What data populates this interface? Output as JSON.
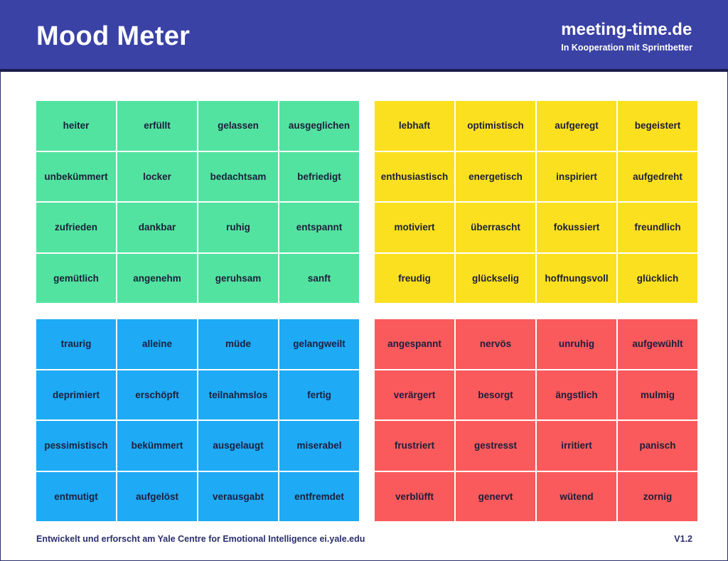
{
  "header": {
    "title": "Mood Meter",
    "brand": "meeting-time.de",
    "brand_sub": "In Kooperation mit Sprintbetter"
  },
  "colors": {
    "header": "#3a42a5",
    "green": "#52e3a0",
    "yellow": "#fbe01f",
    "blue": "#1eaaf5",
    "red": "#fa5a5c",
    "text": "#1c1f3a"
  },
  "quadrants": [
    {
      "id": "green",
      "words": [
        "heiter",
        "erfüllt",
        "gelassen",
        "ausgeglichen",
        "unbekümmert",
        "locker",
        "bedachtsam",
        "befriedigt",
        "zufrieden",
        "dankbar",
        "ruhig",
        "entspannt",
        "gemütlich",
        "angenehm",
        "geruhsam",
        "sanft"
      ]
    },
    {
      "id": "yellow",
      "words": [
        "lebhaft",
        "optimistisch",
        "aufgeregt",
        "begeistert",
        "enthusiastisch",
        "energetisch",
        "inspiriert",
        "aufgedreht",
        "motiviert",
        "überrascht",
        "fokussiert",
        "freundlich",
        "freudig",
        "glückselig",
        "hoffnungsvoll",
        "glücklich"
      ]
    },
    {
      "id": "blue",
      "words": [
        "traurig",
        "alleine",
        "müde",
        "gelangweilt",
        "deprimiert",
        "erschöpft",
        "teilnahmslos",
        "fertig",
        "pessimistisch",
        "bekümmert",
        "ausgelaugt",
        "miserabel",
        "entmutigt",
        "aufgelöst",
        "verausgabt",
        "entfremdet"
      ]
    },
    {
      "id": "red",
      "words": [
        "angespannt",
        "nervös",
        "unruhig",
        "aufgewühlt",
        "verärgert",
        "besorgt",
        "ängstlich",
        "mulmig",
        "frustriert",
        "gestresst",
        "irritiert",
        "panisch",
        "verblüfft",
        "genervt",
        "wütend",
        "zornig"
      ]
    }
  ],
  "footer": {
    "credit": "Entwickelt und erforscht am Yale Centre for Emotional Intelligence ei.yale.edu",
    "version": "V1.2"
  }
}
